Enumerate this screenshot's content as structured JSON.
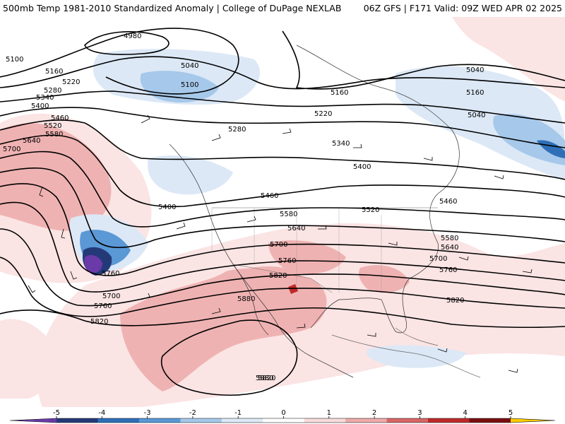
{
  "header": {
    "title_left": "500mb Temp 1981-2010 Standardized Anomaly | College of DuPage NEXLAB",
    "title_right": "06Z GFS | F171 Valid: 09Z WED APR 02 2025"
  },
  "contours": {
    "labels": [
      "4980",
      "5040",
      "5040",
      "5040",
      "5100",
      "5100",
      "5160",
      "5160",
      "5160",
      "5220",
      "5220",
      "5280",
      "5280",
      "5340",
      "5340",
      "5400",
      "5400",
      "5400",
      "5460",
      "5460",
      "5460",
      "5520",
      "5520",
      "5580",
      "5580",
      "5580",
      "5640",
      "5640",
      "5640",
      "5700",
      "5700",
      "5700",
      "5700",
      "5760",
      "5760",
      "5760",
      "5760",
      "5820",
      "5820",
      "5820",
      "5820",
      "5880",
      "5880"
    ]
  },
  "colorbar": {
    "ticks": [
      "-5",
      "-4",
      "-3",
      "-2",
      "-1",
      "0",
      "1",
      "2",
      "3",
      "4",
      "5"
    ],
    "colors": [
      "#6a3aa8",
      "#243a78",
      "#2f6fb8",
      "#5a98d6",
      "#a6c8ea",
      "#dde9f6",
      "#ffffff",
      "#f8dcdc",
      "#eeaaaa",
      "#d86666",
      "#c02a2a",
      "#7a0f0f",
      "#ffcc00"
    ]
  }
}
